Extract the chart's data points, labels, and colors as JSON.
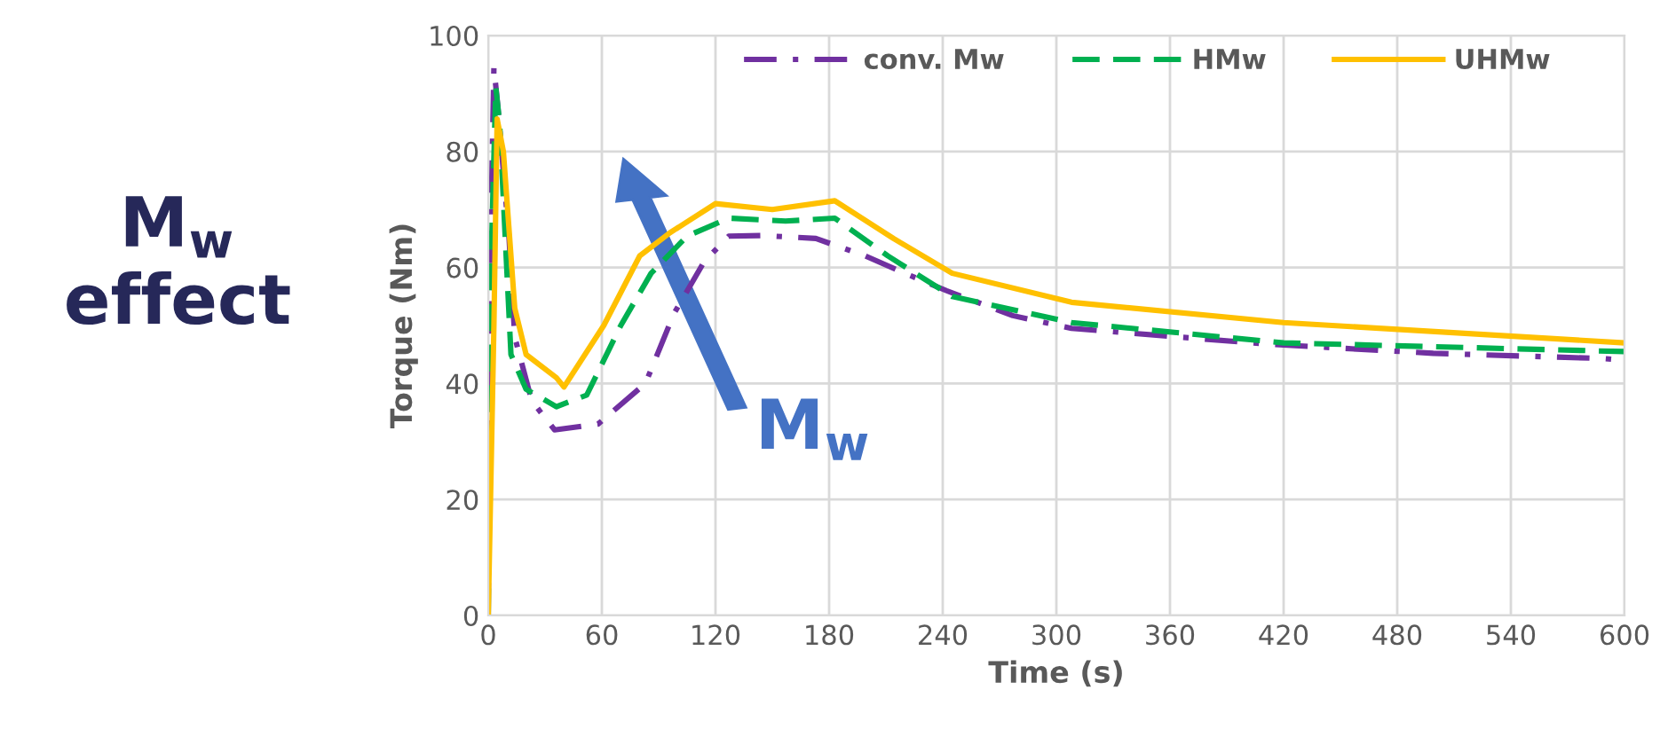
{
  "chart_data": {
    "type": "line",
    "xlabel": "Time (s)",
    "ylabel": "Torque (Nm)",
    "xlim": [
      0,
      600
    ],
    "xticks": [
      0,
      60,
      120,
      180,
      240,
      300,
      360,
      420,
      480,
      540,
      600
    ],
    "ylim": [
      0,
      100
    ],
    "yticks": [
      0,
      20,
      40,
      60,
      80,
      100
    ],
    "grid": true,
    "legend": "top",
    "marker": "none",
    "annotations": [
      "M$_{w}$\neffect",
      "M$_{w}$"
    ],
    "series": [
      {
        "name": "conv. Mw",
        "color": "#7030a0",
        "line_style": "dashdot",
        "x": [
          0,
          1,
          3,
          5,
          11,
          14,
          23,
          35,
          58,
          83,
          98,
          114,
          127,
          145,
          173,
          199,
          220,
          242,
          277,
          308,
          411,
          499,
          589,
          600
        ],
        "values": [
          0,
          60,
          94.5,
          88,
          65,
          48,
          37,
          32,
          33,
          40,
          52,
          61,
          65.4,
          65.5,
          65,
          62,
          59,
          56,
          51.7,
          49.5,
          46.8,
          45.2,
          44.3,
          44
        ]
      },
      {
        "name": "HMw",
        "color": "#00b050",
        "line_style": "dashed",
        "x": [
          0,
          1,
          4,
          6,
          12,
          20,
          36,
          52,
          70,
          86,
          105,
          127,
          157,
          183,
          211,
          245,
          308,
          420,
          600
        ],
        "values": [
          0,
          55,
          91,
          85,
          45,
          39,
          36,
          38,
          50,
          59,
          65.4,
          68.5,
          68,
          68.5,
          62,
          55,
          50.5,
          47,
          45.5
        ]
      },
      {
        "name": "UHMw",
        "color": "#ffc000",
        "line_style": "solid",
        "x": [
          0,
          3,
          4.7,
          8,
          14,
          20,
          36,
          40,
          61,
          80,
          96,
          120,
          150,
          183,
          214,
          245,
          308,
          420,
          600
        ],
        "values": [
          0,
          50,
          85.6,
          80,
          53,
          45,
          41,
          39.4,
          50,
          62,
          66,
          71,
          70,
          71.5,
          65,
          59,
          54,
          50.5,
          47
        ]
      }
    ]
  }
}
